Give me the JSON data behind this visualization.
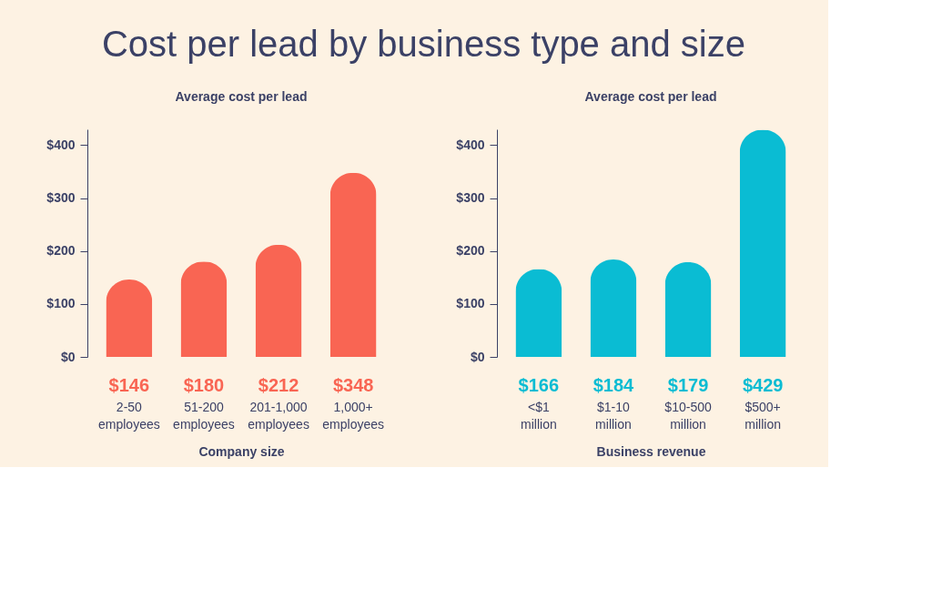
{
  "chart_data": [
    {
      "type": "bar",
      "title": "Cost per lead by business type and size",
      "ylabel": "Average cost per lead",
      "xlabel": "Company size",
      "categories": [
        "2-50 employees",
        "51-200 employees",
        "201-1,000 employees",
        "1,000+ employees"
      ],
      "values": [
        146,
        180,
        212,
        348
      ],
      "value_labels": [
        "$146",
        "$180",
        "$212",
        "$348"
      ],
      "color": "#f96553",
      "ylim": [
        0,
        430
      ],
      "yticks": [
        {
          "value": 0,
          "label": "$0"
        },
        {
          "value": 100,
          "label": "$100"
        },
        {
          "value": 200,
          "label": "$200"
        },
        {
          "value": 300,
          "label": "$300"
        },
        {
          "value": 400,
          "label": "$400"
        }
      ],
      "grid": false
    },
    {
      "type": "bar",
      "ylabel": "Average cost per lead",
      "xlabel": "Business revenue",
      "categories": [
        "<$1 million",
        "$1-10 million",
        "$10-500 million",
        "$500+ million"
      ],
      "values": [
        166,
        184,
        179,
        429
      ],
      "value_labels": [
        "$166",
        "$184",
        "$179",
        "$429"
      ],
      "color": "#0abcd3",
      "ylim": [
        0,
        430
      ],
      "yticks": [
        {
          "value": 0,
          "label": "$0"
        },
        {
          "value": 100,
          "label": "$100"
        },
        {
          "value": 200,
          "label": "$200"
        },
        {
          "value": 300,
          "label": "$300"
        },
        {
          "value": 400,
          "label": "$400"
        }
      ],
      "grid": false
    }
  ]
}
